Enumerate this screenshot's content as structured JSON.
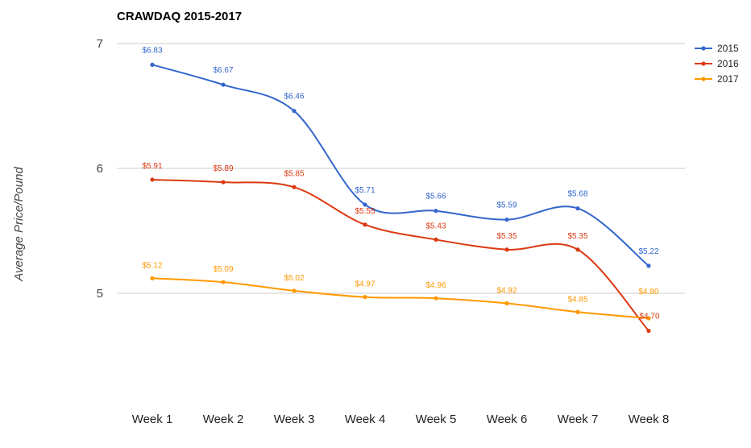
{
  "chart_data": {
    "type": "line",
    "title": "CRAWDAQ 2015-2017",
    "xlabel": "",
    "ylabel": "Average Price/Pound",
    "categories": [
      "Week 1",
      "Week 2",
      "Week 3",
      "Week 4",
      "Week 5",
      "Week 6",
      "Week 7",
      "Week 8"
    ],
    "yticks": [
      "5",
      "6",
      "7"
    ],
    "ylim": [
      4.4,
      7.0
    ],
    "grid": true,
    "legend_position": "right",
    "series": [
      {
        "name": "2015",
        "color": "#3366cc",
        "values": [
          6.83,
          6.67,
          6.46,
          5.71,
          5.66,
          5.59,
          5.68,
          5.22
        ],
        "labels": [
          "$6.83",
          "$6.67",
          "$6.46",
          "$5.71",
          "$5.66",
          "$5.59",
          "$5.68",
          "$5.22"
        ]
      },
      {
        "name": "2016",
        "color": "#dc3912",
        "values": [
          5.91,
          5.89,
          5.85,
          5.55,
          5.43,
          5.35,
          5.35,
          4.7
        ],
        "labels": [
          "$5.91",
          "$5.89",
          "$5.85",
          "$5.55",
          "$5.43",
          "$5.35",
          "$5.35",
          "$4.70"
        ]
      },
      {
        "name": "2017",
        "color": "#ff9900",
        "values": [
          5.12,
          5.09,
          5.02,
          4.97,
          4.96,
          4.92,
          4.85,
          4.8
        ],
        "labels": [
          "$5.12",
          "$5.09",
          "$5.02",
          "$4.97",
          "$4.96",
          "$4.92",
          "$4.85",
          "$4.80"
        ]
      }
    ]
  }
}
